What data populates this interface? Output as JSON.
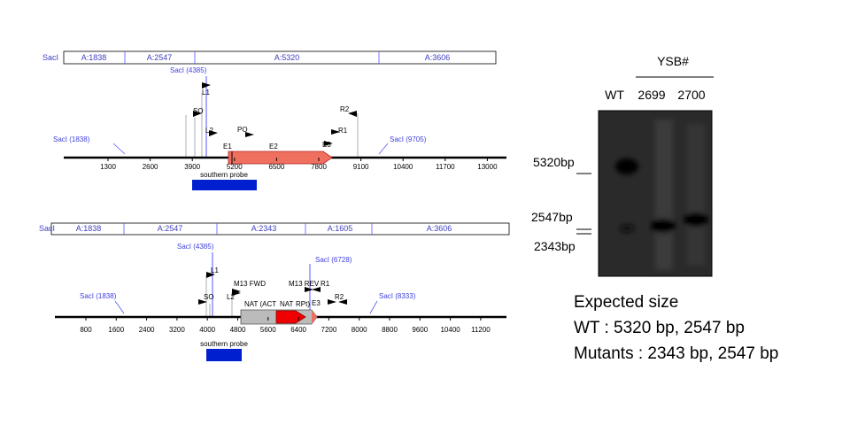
{
  "map1": {
    "fragments": [
      "SacI",
      "A:1838",
      "A:2547",
      "A:5320",
      "A:3606"
    ],
    "sites": {
      "sac4385": "SacI (4385)",
      "l1": "L1",
      "so": "SO",
      "l2": "L2",
      "po": "PO",
      "e1": "E1",
      "e2": "E2",
      "e3": "E3",
      "r1": "R1",
      "r2": "R2",
      "sac1838": "SacI (1838)",
      "sac9705": "SacI (9705)"
    },
    "ticks": [
      "1300",
      "2600",
      "3900",
      "5200",
      "6500",
      "7800",
      "9100",
      "10400",
      "11700",
      "13000"
    ],
    "probe": "southern probe"
  },
  "map2": {
    "fragments": [
      "SacI",
      "A:1838",
      "A:2547",
      "A:2343",
      "A:1605",
      "A:3606"
    ],
    "sites": {
      "sac4385": "SacI (4385)",
      "l1": "L1",
      "so": "SO",
      "l2": "L2",
      "m13fwd": "M13 FWD",
      "m13rev": "M13 REV",
      "r1": "R1",
      "sac6728": "SacI (6728)",
      "e3": "E3",
      "r2": "R2",
      "sac1838": "SacI (1838)",
      "sac8333": "SacI (8333)",
      "nat_act": "NAT (ACT",
      "nat": "NAT",
      "rpt": "RPt)"
    },
    "ticks": [
      "800",
      "1600",
      "2400",
      "3200",
      "4000",
      "4800",
      "5600",
      "6400",
      "7200",
      "8000",
      "8800",
      "9600",
      "10400",
      "11200"
    ],
    "probe": "southern probe"
  },
  "gel": {
    "group": "YSB#",
    "lanes": [
      "WT",
      "2699",
      "2700"
    ],
    "markers": [
      "5320bp",
      "2547bp",
      "2343bp"
    ]
  },
  "expected": {
    "title": "Expected size",
    "lines": [
      "WT : 5320 bp, 2547 bp",
      "Mutants : 2343 bp, 2547 bp"
    ]
  }
}
